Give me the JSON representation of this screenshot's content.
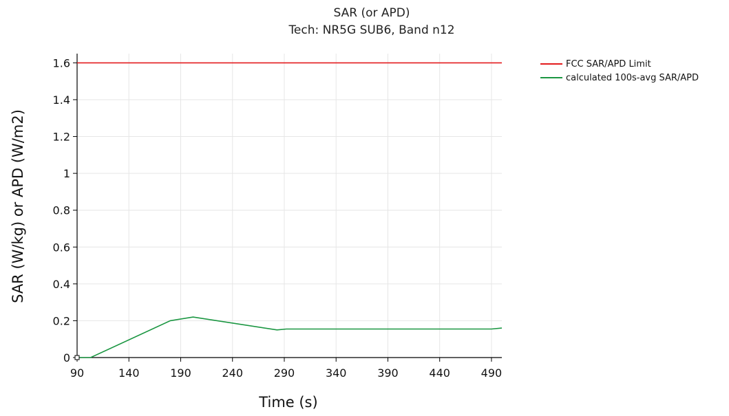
{
  "chart_data": {
    "type": "line",
    "title": "SAR (or APD)",
    "subtitle": "Tech: NR5G SUB6, Band n12",
    "xlabel": "Time (s)",
    "ylabel": "SAR (W/kg) or APD (W/m2)",
    "xlim": [
      90,
      500
    ],
    "ylim": [
      0,
      1.65
    ],
    "x_ticks": [
      90,
      140,
      190,
      240,
      290,
      340,
      390,
      440,
      490
    ],
    "y_ticks": [
      0,
      0.2,
      0.4,
      0.6,
      0.8,
      1,
      1.2,
      1.4,
      1.6
    ],
    "x_tick_labels": [
      "90",
      "140",
      "190",
      "240",
      "290",
      "340",
      "390",
      "440",
      "490"
    ],
    "y_tick_labels": [
      "0",
      "0.2",
      "0.4",
      "0.6",
      "0.8",
      "1",
      "1.2",
      "1.4",
      "1.6"
    ],
    "grid": true,
    "legend_position": "top-right outside",
    "series": [
      {
        "name": "FCC SAR/APD Limit",
        "color": "#e31a1c",
        "x": [
          90,
          500
        ],
        "y": [
          1.6,
          1.6
        ]
      },
      {
        "name": "calculated 100s-avg SAR/APD",
        "color": "#1a9641",
        "x": [
          90,
          103,
          180,
          202,
          283,
          292,
          490,
          500
        ],
        "y": [
          0,
          0,
          0.2,
          0.22,
          0.15,
          0.155,
          0.155,
          0.16
        ]
      }
    ]
  }
}
